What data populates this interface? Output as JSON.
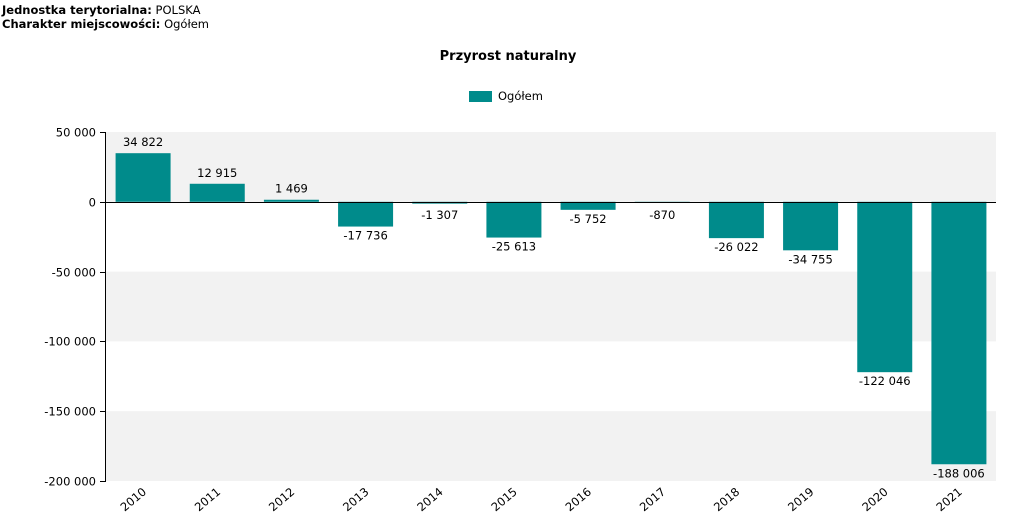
{
  "header": {
    "unit_label": "Jednostka terytorialna:",
    "unit_value": "POLSKA",
    "type_label": "Charakter miejscowości:",
    "type_value": "Ogółem"
  },
  "colors": {
    "series": "#008b8b",
    "band": "#f2f2f2",
    "axis": "#000000"
  },
  "chart_data": {
    "type": "bar",
    "title": "Przyrost naturalny",
    "xlabel": "",
    "ylabel": "",
    "categories": [
      "2010",
      "2011",
      "2012",
      "2013",
      "2014",
      "2015",
      "2016",
      "2017",
      "2018",
      "2019",
      "2020",
      "2021"
    ],
    "series": [
      {
        "name": "Ogółem",
        "values": [
          34822,
          12915,
          1469,
          -17736,
          -1307,
          -25613,
          -5752,
          -870,
          -26022,
          -34755,
          -122046,
          -188006
        ],
        "labels": [
          "34 822",
          "12 915",
          "1 469",
          "-17 736",
          "-1 307",
          "-25 613",
          "-5 752",
          "-870",
          "-26 022",
          "-34 755",
          "-122 046",
          "-188 006"
        ]
      }
    ],
    "ylim": [
      -200000,
      50000
    ],
    "yticks": [
      50000,
      0,
      -50000,
      -100000,
      -150000,
      -200000
    ],
    "ytick_labels": [
      "50 000",
      "0",
      "-50 000",
      "-100 000",
      "-150 000",
      "-200 000"
    ],
    "legend_position": "top-center",
    "grid": "alternating-bands"
  }
}
